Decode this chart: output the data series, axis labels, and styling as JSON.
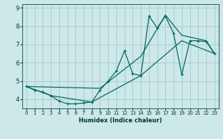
{
  "bg_color": "#cce8e8",
  "grid_color": "#aacccc",
  "line_color": "#006666",
  "xlabel": "Humidex (Indice chaleur)",
  "xlim": [
    -0.5,
    23.5
  ],
  "ylim": [
    3.5,
    9.2
  ],
  "xticks": [
    0,
    1,
    2,
    3,
    4,
    5,
    6,
    7,
    8,
    9,
    10,
    11,
    12,
    13,
    14,
    15,
    16,
    17,
    18,
    19,
    20,
    21,
    22,
    23
  ],
  "yticks": [
    4,
    5,
    6,
    7,
    8,
    9
  ],
  "series1_x": [
    0,
    1,
    2,
    3,
    4,
    5,
    6,
    7,
    8,
    9,
    10,
    11,
    12,
    13,
    14,
    15,
    16,
    17,
    18,
    19,
    20,
    21,
    22,
    23
  ],
  "series1_y": [
    4.7,
    4.5,
    4.4,
    4.2,
    3.9,
    3.75,
    3.75,
    3.8,
    3.85,
    4.5,
    5.0,
    5.55,
    6.65,
    5.4,
    5.3,
    8.55,
    7.9,
    8.55,
    7.6,
    5.35,
    7.2,
    7.2,
    7.15,
    6.5
  ],
  "series2_x": [
    0,
    9,
    14,
    17,
    19,
    22,
    23
  ],
  "series2_y": [
    4.7,
    4.6,
    6.35,
    8.6,
    7.5,
    7.2,
    6.5
  ],
  "series3_x": [
    0,
    3,
    8,
    14,
    19,
    23
  ],
  "series3_y": [
    4.7,
    4.2,
    3.85,
    5.3,
    7.2,
    6.5
  ],
  "xlabel_fontsize": 6,
  "tick_fontsize_x": 5,
  "tick_fontsize_y": 6
}
